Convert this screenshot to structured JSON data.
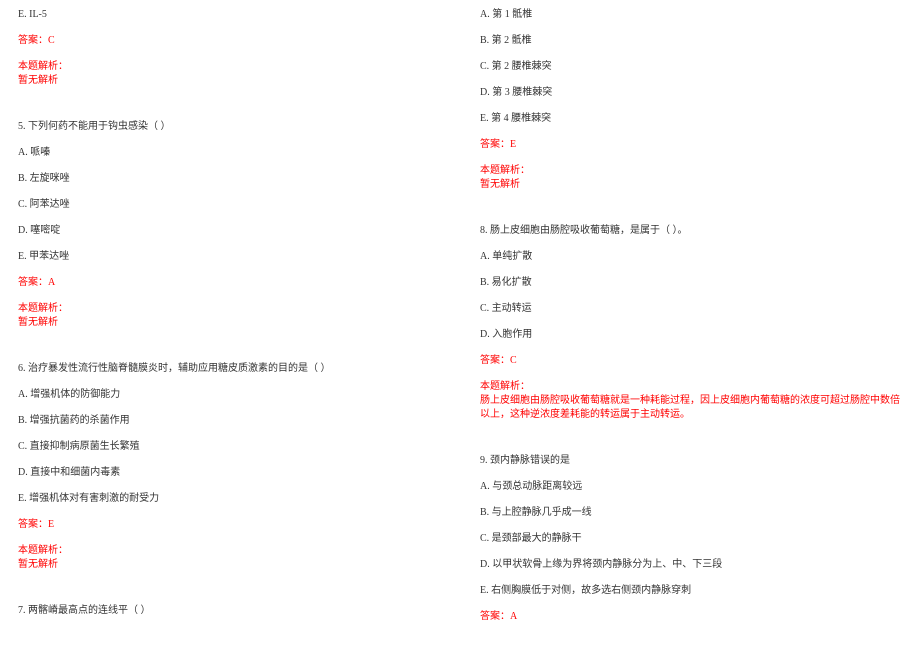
{
  "left": {
    "l01": "E. IL-5",
    "l02": "答案：C",
    "l03": "本题解析：",
    "l04": "暂无解析",
    "q5": {
      "stem": "5. 下列何药不能用于钩虫感染（  ）",
      "a": "A. 哌嗪",
      "b": "B. 左旋咪唑",
      "c": "C. 阿苯达唑",
      "d": "D. 噻嘧啶",
      "e": "E. 甲苯达唑",
      "ans": "答案：A",
      "exp1": "本题解析：",
      "exp2": "暂无解析"
    },
    "q6": {
      "stem": "6. 治疗暴发性流行性脑脊髓膜炎时，辅助应用糖皮质激素的目的是（  ）",
      "a": "A. 增强机体的防御能力",
      "b": "B. 增强抗菌药的杀菌作用",
      "c": "C. 直接抑制病原菌生长繁殖",
      "d": "D. 直接中和细菌内毒素",
      "e": "E. 增强机体对有害刺激的耐受力",
      "ans": "答案：E",
      "exp1": "本题解析：",
      "exp2": "暂无解析"
    },
    "q7": {
      "stem": "7. 两髂嵴最高点的连线平（  ）"
    }
  },
  "right": {
    "q7opts": {
      "a": "A. 第 1 骶椎",
      "b": "B. 第 2 骶椎",
      "c": "C. 第 2 腰椎棘突",
      "d": "D. 第 3 腰椎棘突",
      "e": "E. 第 4 腰椎棘突",
      "ans": "答案：E",
      "exp1": "本题解析：",
      "exp2": "暂无解析"
    },
    "q8": {
      "stem": "8. 肠上皮细胞由肠腔吸收葡萄糖，是属于（ ）。",
      "a": "A. 单纯扩散",
      "b": "B. 易化扩散",
      "c": "C. 主动转运",
      "d": "D. 入胞作用",
      "ans": "答案：C",
      "exp1": "本题解析：",
      "exp2": "肠上皮细胞由肠腔吸收葡萄糖就是一种耗能过程，因上皮细胞内葡萄糖的浓度可超过肠腔中数倍以上，这种逆浓度差耗能的转运属于主动转运。"
    },
    "q9": {
      "stem": "9. 颈内静脉错误的是",
      "a": "A. 与颈总动脉距离较远",
      "b": "B. 与上腔静脉几乎成一线",
      "c": "C. 是颈部最大的静脉干",
      "d": "D. 以甲状软骨上缘为界将颈内静脉分为上、中、下三段",
      "e": "E. 右侧胸膜低于对侧，故多选右侧颈内静脉穿刺",
      "ans": "答案：A"
    }
  }
}
